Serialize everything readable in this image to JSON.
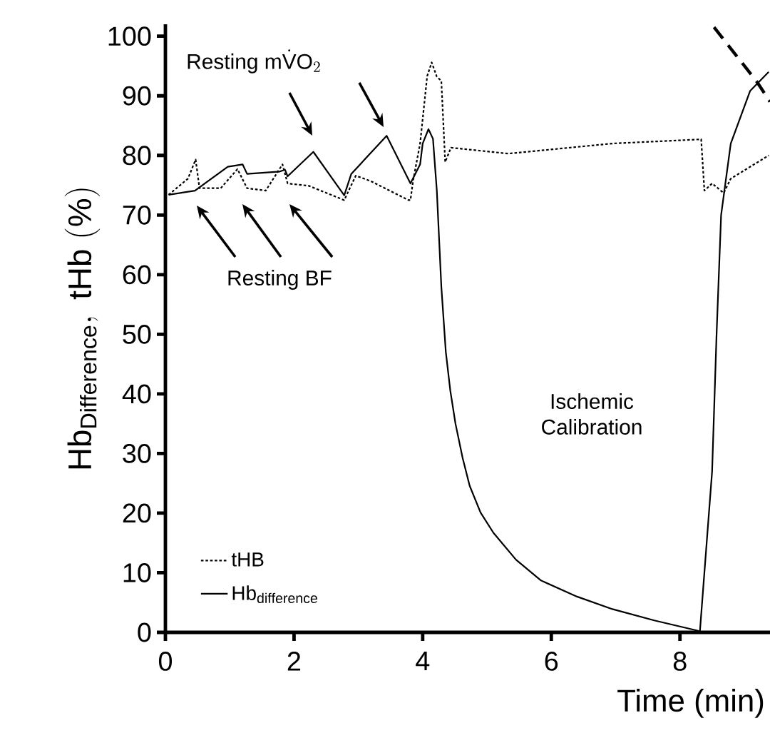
{
  "chart_data": {
    "type": "line",
    "xlabel": "Time (min)",
    "ylabel": "\\mathrm{Hb}_{\\mathrm{Difference}}\\mathrm{,\\ tHb\\ (\\%)}",
    "xlim": [
      0,
      9.4
    ],
    "ylim": [
      0,
      102
    ],
    "xticks": [
      0,
      2,
      4,
      6,
      8
    ],
    "yticks": [
      0,
      10,
      20,
      30,
      40,
      50,
      60,
      70,
      80,
      90,
      100
    ],
    "legend": "bottom left",
    "annotations": [
      "\\mathrm{Resting\\ m}\\dot{\\mathrm{V}}\\mathrm{O}_{2}",
      "Resting BF",
      "Ischemic Calibration"
    ],
    "series": [
      {
        "name": "tHB",
        "color": "#000000",
        "line_style": "dotted",
        "x": [
          0.05,
          0.35,
          0.47,
          0.53,
          0.86,
          1.12,
          1.27,
          1.56,
          1.82,
          1.9,
          2.23,
          2.78,
          2.96,
          3.19,
          3.78,
          3.81,
          3.85,
          3.96,
          4.07,
          4.14,
          4.22,
          4.29,
          4.35,
          4.44,
          5.33,
          6.95,
          8.33,
          8.38,
          8.5,
          8.68,
          8.79,
          9.38
        ],
        "values": [
          73.4,
          76.1,
          79.3,
          74.5,
          74.5,
          77.7,
          74.5,
          74.1,
          78.5,
          75.3,
          74.9,
          72.5,
          76.6,
          75.7,
          72.5,
          72.5,
          75.7,
          82,
          93.3,
          95.6,
          93.2,
          92.5,
          78.9,
          81.3,
          80.3,
          82,
          82.7,
          74.1,
          75.3,
          73.7,
          76.1,
          80
        ]
      },
      {
        "name": "\\mathrm{Hb}_{\\mathrm{difference}}",
        "color": "#000000",
        "line_style": "solid",
        "x": [
          0.05,
          0.46,
          0.97,
          1.2,
          1.27,
          1.78,
          1.86,
          1.9,
          2.3,
          2.78,
          2.89,
          3.44,
          3.81,
          3.96,
          4.0,
          4.09,
          4.16,
          4.22,
          4.29,
          4.36,
          4.43,
          4.51,
          4.62,
          4.73,
          4.9,
          5.1,
          5.45,
          5.84,
          6.4,
          6.95,
          7.6,
          8.27,
          8.31,
          8.5,
          8.57,
          8.64,
          8.79,
          9.09,
          9.38
        ],
        "values": [
          73.4,
          74.1,
          78.1,
          78.5,
          76.9,
          77.3,
          77.6,
          76.5,
          80.6,
          73.3,
          76.9,
          83.3,
          75.3,
          78.5,
          82,
          84.4,
          82.8,
          74.1,
          58,
          47,
          40.5,
          35,
          29.3,
          24.6,
          20.1,
          16.7,
          12.2,
          8.7,
          6.0,
          3.9,
          2.0,
          0.3,
          0.1,
          27,
          50.2,
          70,
          82,
          90.8,
          94
        ]
      },
      {
        "color": "#000000",
        "line_style": "dashed",
        "x": [
          8.53,
          9.2,
          9.4
        ],
        "values": [
          101.5,
          92.3,
          89
        ]
      }
    ]
  }
}
